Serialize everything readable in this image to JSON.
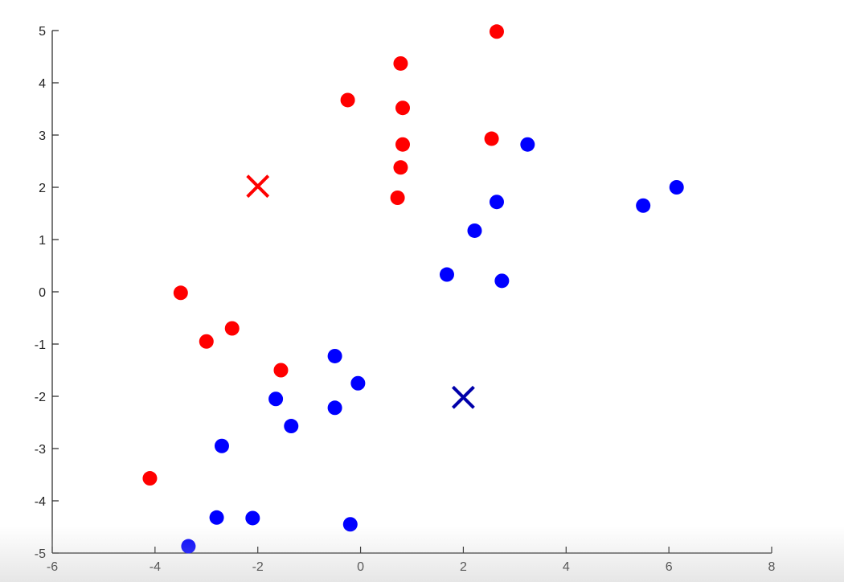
{
  "chart_data": {
    "type": "scatter",
    "title": "",
    "xlabel": "",
    "ylabel": "",
    "xlim": [
      -6,
      8
    ],
    "ylim": [
      -5,
      5
    ],
    "x_ticks": [
      -6,
      -4,
      -2,
      0,
      2,
      4,
      6,
      8
    ],
    "y_ticks": [
      -5,
      -4,
      -3,
      -2,
      -1,
      0,
      1,
      2,
      3,
      4,
      5
    ],
    "x_tick_labels": [
      "-6",
      "-4",
      "-2",
      "0",
      "2",
      "4",
      "6",
      "8"
    ],
    "y_tick_labels": [
      "-5",
      "-4",
      "-3",
      "-2",
      "-1",
      "0",
      "1",
      "2",
      "3",
      "4",
      "5"
    ],
    "grid": false,
    "series": [
      {
        "color": "#ff0000",
        "marker": "circle",
        "points": [
          [
            2.65,
            4.98
          ],
          [
            0.78,
            4.37
          ],
          [
            -0.25,
            3.67
          ],
          [
            0.82,
            3.52
          ],
          [
            2.55,
            2.93
          ],
          [
            0.82,
            2.82
          ],
          [
            0.78,
            2.38
          ],
          [
            0.72,
            1.8
          ],
          [
            -3.5,
            -0.02
          ],
          [
            -3.0,
            -0.95
          ],
          [
            -2.5,
            -0.7
          ],
          [
            -1.55,
            -1.5
          ],
          [
            -4.1,
            -3.57
          ]
        ]
      },
      {
        "color": "#0000ff",
        "marker": "circle",
        "points": [
          [
            3.25,
            2.82
          ],
          [
            6.15,
            2.0
          ],
          [
            5.5,
            1.65
          ],
          [
            2.65,
            1.72
          ],
          [
            2.22,
            1.17
          ],
          [
            1.68,
            0.33
          ],
          [
            2.75,
            0.21
          ],
          [
            -0.5,
            -1.23
          ],
          [
            -0.05,
            -1.75
          ],
          [
            -1.65,
            -2.05
          ],
          [
            -0.5,
            -2.22
          ],
          [
            -1.35,
            -2.57
          ],
          [
            -2.7,
            -2.95
          ],
          [
            -2.8,
            -4.32
          ],
          [
            -2.1,
            -4.33
          ],
          [
            -0.2,
            -4.45
          ],
          [
            -3.35,
            -4.87
          ]
        ]
      }
    ],
    "centroids": [
      {
        "color": "#ff0000",
        "marker": "x",
        "point": [
          -2.0,
          2.02
        ]
      },
      {
        "color": "#0000aa",
        "marker": "x",
        "point": [
          2.0,
          -2.02
        ]
      }
    ]
  }
}
